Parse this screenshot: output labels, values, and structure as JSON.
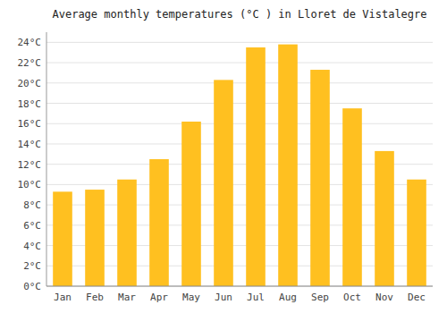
{
  "chart_data": {
    "type": "bar",
    "title": "Average monthly temperatures (°C ) in Lloret de Vistalegre",
    "categories": [
      "Jan",
      "Feb",
      "Mar",
      "Apr",
      "May",
      "Jun",
      "Jul",
      "Aug",
      "Sep",
      "Oct",
      "Nov",
      "Dec"
    ],
    "values": [
      9.3,
      9.5,
      10.5,
      12.5,
      16.2,
      20.3,
      23.5,
      23.8,
      21.3,
      17.5,
      13.3,
      10.5
    ],
    "color": "#FFC020",
    "ylim": [
      0,
      25
    ],
    "yticks": [
      {
        "value": 0,
        "label": "0°C"
      },
      {
        "value": 2,
        "label": "2°C"
      },
      {
        "value": 4,
        "label": "4°C"
      },
      {
        "value": 6,
        "label": "6°C"
      },
      {
        "value": 8,
        "label": "8°C"
      },
      {
        "value": 10,
        "label": "10°C"
      },
      {
        "value": 12,
        "label": "12°C"
      },
      {
        "value": 14,
        "label": "14°C"
      },
      {
        "value": 16,
        "label": "16°C"
      },
      {
        "value": 18,
        "label": "18°C"
      },
      {
        "value": 20,
        "label": "20°C"
      },
      {
        "value": 22,
        "label": "22°C"
      },
      {
        "value": 24,
        "label": "24°C"
      }
    ],
    "grid": true
  }
}
